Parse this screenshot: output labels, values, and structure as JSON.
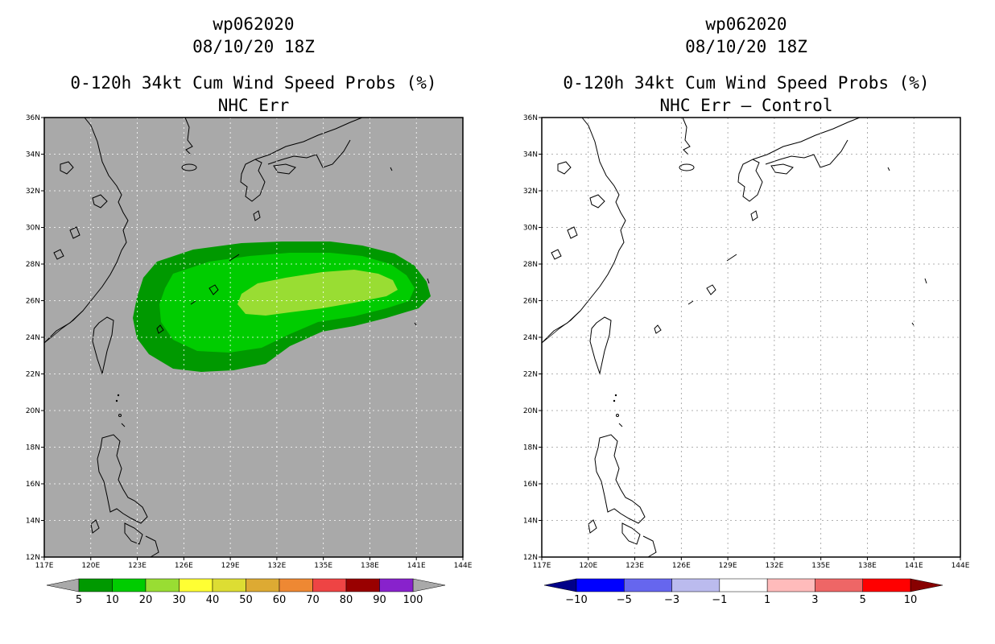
{
  "left_panel": {
    "title_storm": "wp062020",
    "title_time": "08/10/20 18Z",
    "title_product": "0-120h 34kt Cum Wind Speed Probs (%)",
    "title_subtitle": "NHC Err",
    "background_color": "#a9a9a9",
    "colorbar": {
      "labels": [
        "5",
        "10",
        "20",
        "30",
        "40",
        "50",
        "60",
        "70",
        "80",
        "90",
        "100"
      ],
      "colors": [
        "#009900",
        "#00cc00",
        "#99dd33",
        "#ffff33",
        "#dddd33",
        "#ddaa33",
        "#ee8833",
        "#ee4444",
        "#990000",
        "#8822cc"
      ],
      "end_low_color": "#a9a9a9",
      "end_high_color": "#a9a9a9"
    }
  },
  "right_panel": {
    "title_storm": "wp062020",
    "title_time": "08/10/20 18Z",
    "title_product": "0-120h 34kt Cum Wind Speed Probs (%)",
    "title_subtitle": "NHC Err – Control",
    "background_color": "#ffffff",
    "colorbar": {
      "labels": [
        "−10",
        "−5",
        "−3",
        "−1",
        "1",
        "3",
        "5",
        "10"
      ],
      "colors": [
        "#0000ff",
        "#6666ee",
        "#bbbbee",
        "#ffffff",
        "#ffbbbb",
        "#ee6666",
        "#ff0000"
      ],
      "end_low_color": "#000088",
      "end_high_color": "#880000"
    }
  },
  "axes": {
    "lon_labels": [
      "117E",
      "120E",
      "123E",
      "126E",
      "129E",
      "132E",
      "135E",
      "138E",
      "141E",
      "144E"
    ],
    "lat_labels": [
      "12N",
      "14N",
      "16N",
      "18N",
      "20N",
      "22N",
      "24N",
      "26N",
      "28N",
      "30N",
      "32N",
      "34N",
      "36N"
    ],
    "lon_range": [
      117,
      144
    ],
    "lat_range": [
      12,
      36
    ]
  },
  "probability_field": {
    "description_levels": [
      "5-10",
      "10-20",
      "20-30"
    ],
    "level_colors": [
      "#009900",
      "#00cc00",
      "#99dd33"
    ]
  }
}
